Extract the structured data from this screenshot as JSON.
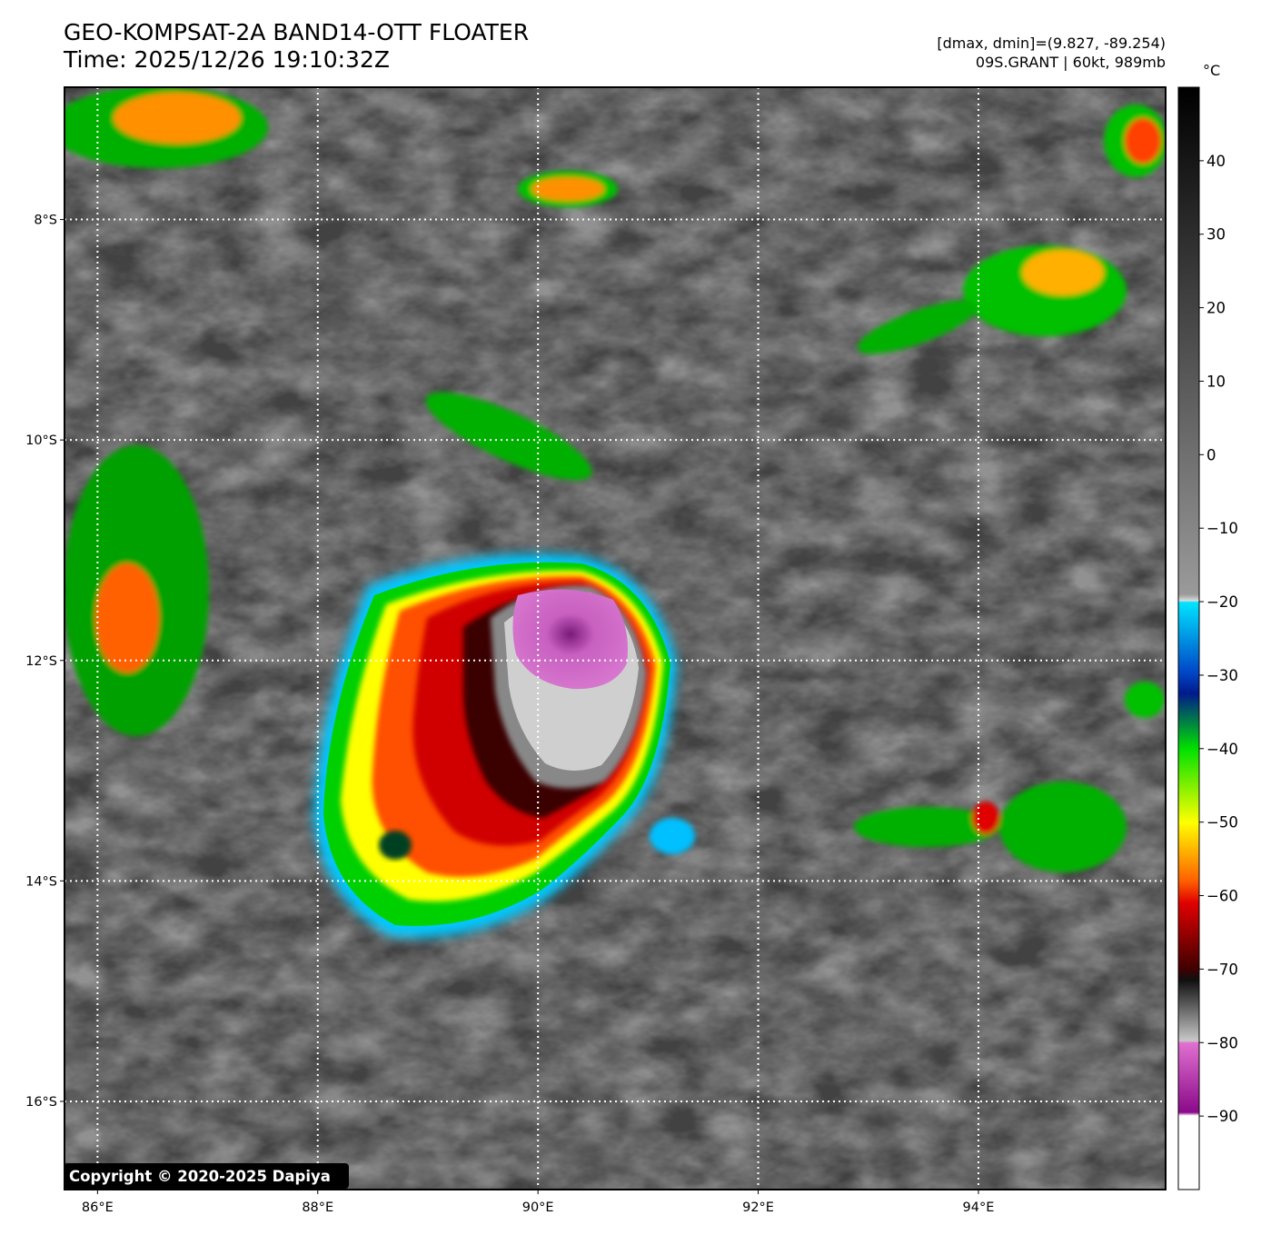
{
  "header": {
    "title": "GEO-KOMPSAT-2A BAND14-OTT FLOATER",
    "time": "Time: 2025/12/26 19:10:32Z",
    "range": "[dmax, dmin]=(9.827, -89.254)",
    "storm": "09S.GRANT | 60kt, 989mb"
  },
  "map": {
    "lon_range": [
      85.7,
      95.7
    ],
    "lat_range": [
      -16.8,
      -6.8
    ],
    "lon_ticks": [
      "86°E",
      "88°E",
      "90°E",
      "92°E",
      "94°E"
    ],
    "lon_tick_values": [
      86,
      88,
      90,
      92,
      94
    ],
    "lat_ticks": [
      "8°S",
      "10°S",
      "12°S",
      "14°S",
      "16°S"
    ],
    "lat_tick_values": [
      -8,
      -10,
      -12,
      -14,
      -16
    ],
    "gridlines": "dotted white",
    "storm_center": {
      "lon": 90.3,
      "lat": -11.8
    },
    "copyright": "Copyright © 2020-2025 Dapiya"
  },
  "colorbar": {
    "unit": "°C",
    "range": [
      -100,
      50
    ],
    "ticks": [
      "40",
      "30",
      "20",
      "10",
      "0",
      "−10",
      "−20",
      "−30",
      "−40",
      "−50",
      "−60",
      "−70",
      "−80",
      "−90"
    ],
    "tick_values": [
      40,
      30,
      20,
      10,
      0,
      -10,
      -20,
      -30,
      -40,
      -50,
      -60,
      -70,
      -80,
      -90
    ],
    "colors": {
      "warm_black": "#000000",
      "cold_white": "#e0e0e0",
      "cyan": "#00e5ff",
      "blue": "#001a8c",
      "green": "#00e000",
      "yellow": "#ffff00",
      "red": "#e00000",
      "dark_red": "#400000",
      "magenta": "#e070d0",
      "purple": "#8a0a8a"
    }
  }
}
